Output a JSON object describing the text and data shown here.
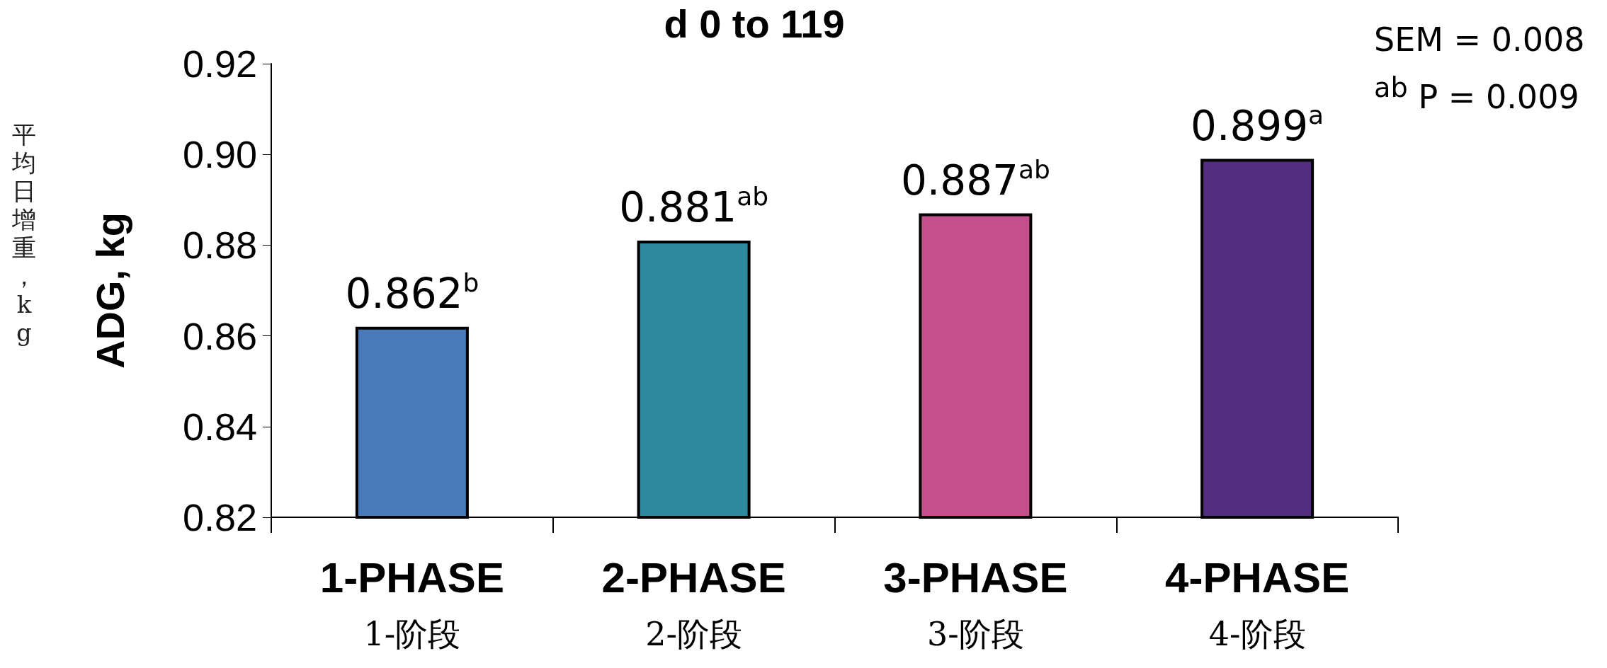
{
  "chart_data": {
    "type": "bar",
    "title": "d 0 to 119",
    "ylabel": "ADG, kg",
    "annotations": [
      "SEM = 0.008",
      "$^{ab}$ P = 0.009",
      "平均日增重，kg"
    ],
    "categories": [
      "1-PHASE\n1-阶段",
      "2-PHASE\n2-阶段",
      "3-PHASE\n3-阶段",
      "4-PHASE\n4-阶段"
    ],
    "values": [
      0.862,
      0.881,
      0.887,
      0.899
    ],
    "colors": [
      "#4a7aba",
      "#2e889e",
      "#c44f8a",
      "#532d80"
    ],
    "value_labels": [
      "0.862$^{b}$",
      "0.881$^{ab}$",
      "0.887$^{ab}$",
      "0.899$^{a}$"
    ],
    "ylim": [
      0.82,
      0.92
    ],
    "yticks": [
      0.82,
      0.84,
      0.86,
      0.88,
      {
        "value": 0.9,
        "label": "0.90"
      },
      0.92
    ],
    "grid": false
  }
}
